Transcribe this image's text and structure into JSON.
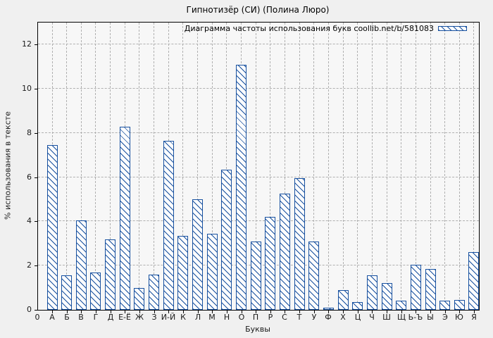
{
  "window": {
    "title": "Гипнотизёр (СИ) (Полина Люро)"
  },
  "legend": {
    "label": "Диаграмма частоты использования букв coollib.net/b/581083"
  },
  "axes": {
    "x_label": "Буквы",
    "y_label": "% использования в тексте",
    "origin_label": "0",
    "y_ticks": [
      0,
      2,
      4,
      6,
      8,
      10,
      12
    ]
  },
  "colors": {
    "bar": "#17509f",
    "grid": "#b0b0b0",
    "axis": "#000000",
    "page_bg": "#f0f0f0",
    "plot_bg": "#f7f7f7"
  },
  "chart_data": {
    "type": "bar",
    "title": "Гипнотизёр (СИ) (Полина Люро)",
    "categories": [
      "А",
      "Б",
      "В",
      "Г",
      "Д",
      "Е-Ё",
      "Ж",
      "З",
      "И-Й",
      "К",
      "Л",
      "М",
      "Н",
      "О",
      "П",
      "Р",
      "С",
      "Т",
      "У",
      "Ф",
      "Х",
      "Ц",
      "Ч",
      "Ш",
      "Щ",
      "Ь-Ъ",
      "Ы",
      "Э",
      "Ю",
      "Я"
    ],
    "values": [
      7.45,
      1.55,
      4.05,
      1.7,
      3.2,
      8.3,
      1.0,
      1.6,
      7.65,
      3.35,
      5.0,
      3.45,
      6.35,
      11.1,
      3.1,
      4.2,
      5.25,
      5.95,
      3.1,
      0.1,
      0.9,
      0.35,
      1.55,
      1.2,
      0.4,
      2.05,
      1.85,
      0.4,
      0.45,
      2.6
    ],
    "xlabel": "Буквы",
    "ylabel": "% использования в тексте",
    "ylim": [
      0,
      13
    ],
    "y_ticks": [
      0,
      2,
      4,
      6,
      8,
      10,
      12
    ],
    "grid": "dashed, horizontal at each y tick and vertical at each category",
    "legend_label": "Диаграмма частоты использования букв coollib.net/b/581083",
    "legend_position": "top-right inside plot",
    "bar_style": "white fill with blue backslash hatch and blue outline"
  }
}
